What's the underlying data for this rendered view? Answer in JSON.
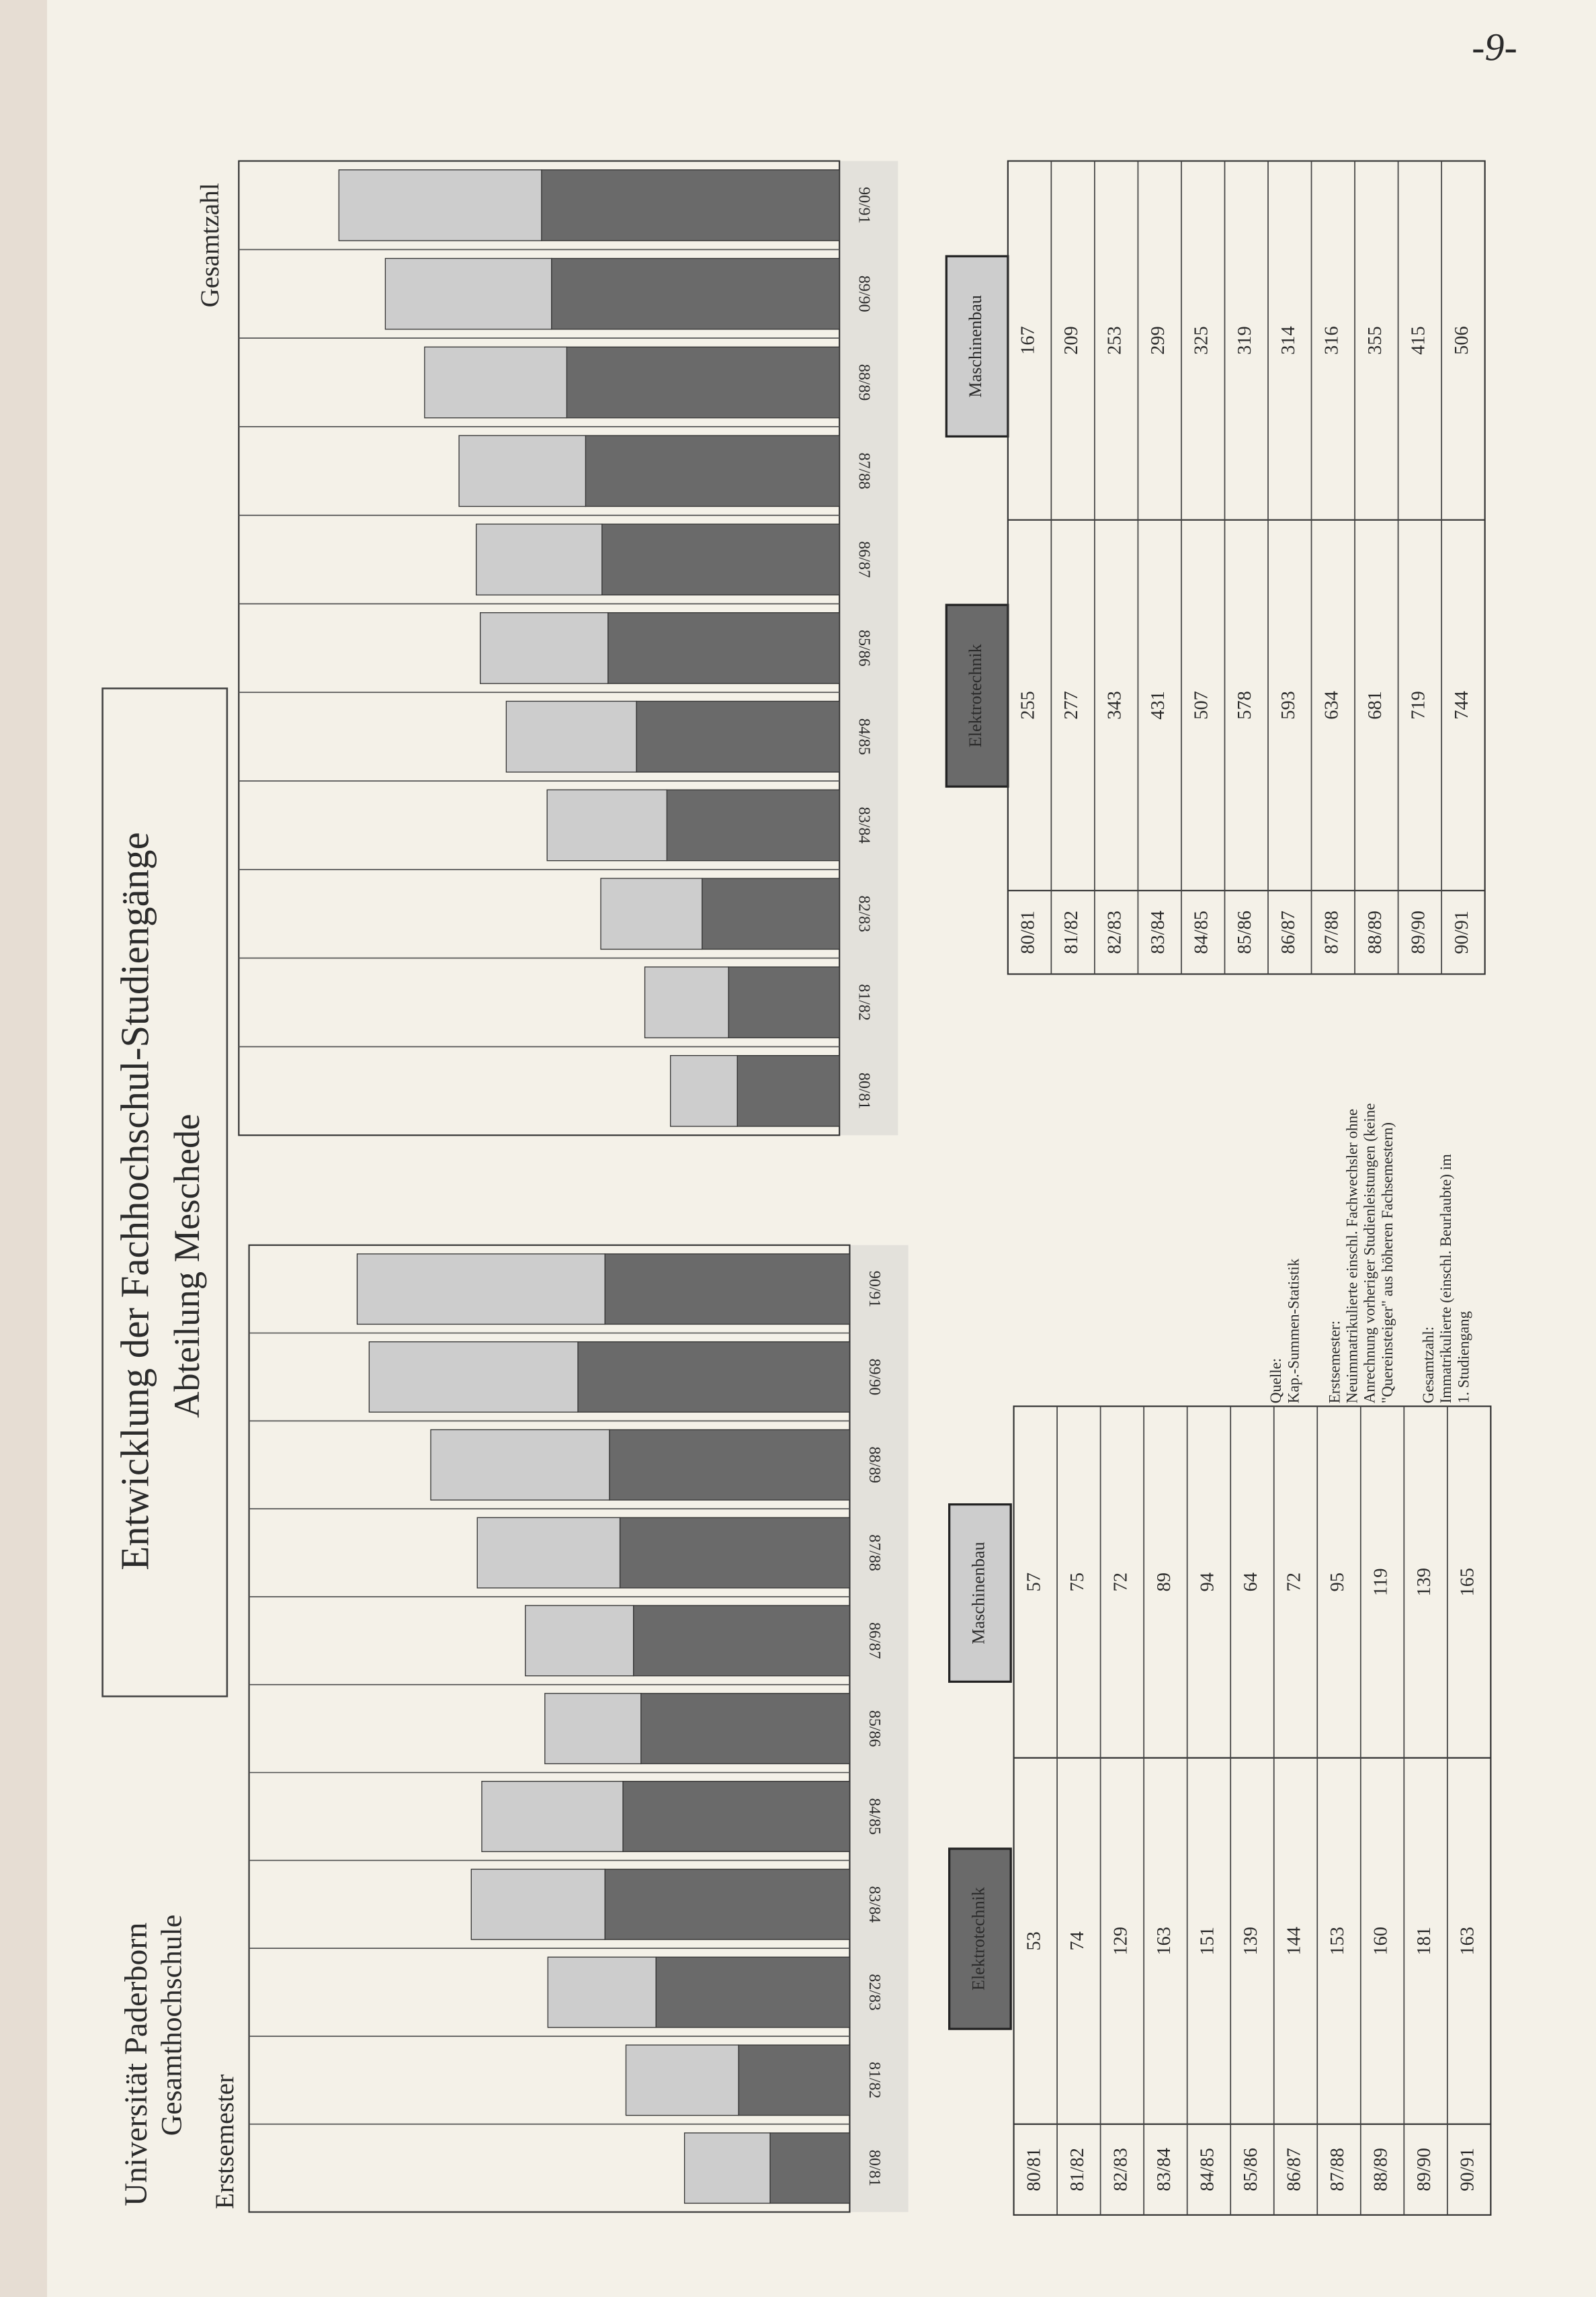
{
  "page": {
    "institution": [
      "Universität Paderborn",
      "Gesamthochschule"
    ],
    "title": [
      "Entwicklung der Fachhochschul-Studiengänge",
      "Abteilung Meschede"
    ],
    "page_number": "-9-",
    "notes": [
      "Quelle:",
      "Kap.-Summen-Statistik",
      "Erstsemester:",
      "Neuimmatrikulierte einschl. Fachwechsler ohne",
      "Anrechnung vorheriger Studienleistungen (keine",
      "\"Quereinsteiger\" aus höheren Fachsemestern)",
      "Gesamtzahl:",
      "Immatrikulierte (einschl. Beurlaubte) im",
      "1. Studiengang"
    ]
  },
  "chart_data": [
    {
      "type": "bar",
      "stacked": true,
      "title": "Erstsemester",
      "categories": [
        "80/81",
        "81/82",
        "82/83",
        "83/84",
        "84/85",
        "85/86",
        "86/87",
        "87/88",
        "88/89",
        "89/90",
        "90/91"
      ],
      "series": [
        {
          "name": "Elektrotechnik",
          "color": "#6a6a6a",
          "values": [
            53,
            74,
            129,
            163,
            151,
            139,
            144,
            153,
            160,
            181,
            163
          ]
        },
        {
          "name": "Maschinenbau",
          "color": "#cdcdcd",
          "values": [
            57,
            75,
            72,
            89,
            94,
            64,
            72,
            95,
            119,
            139,
            165
          ]
        }
      ],
      "ylim": [
        0,
        400
      ]
    },
    {
      "type": "bar",
      "stacked": true,
      "title": "Gesamtzahl",
      "categories": [
        "80/81",
        "81/82",
        "82/83",
        "83/84",
        "84/85",
        "85/86",
        "86/87",
        "87/88",
        "88/89",
        "89/90",
        "90/91"
      ],
      "series": [
        {
          "name": "Elektrotechnik",
          "color": "#6a6a6a",
          "values": [
            255,
            277,
            343,
            431,
            507,
            578,
            593,
            634,
            681,
            719,
            744
          ]
        },
        {
          "name": "Maschinenbau",
          "color": "#cdcdcd",
          "values": [
            167,
            209,
            253,
            299,
            325,
            319,
            314,
            316,
            355,
            415,
            506
          ]
        }
      ],
      "ylim": [
        0,
        1500
      ]
    }
  ]
}
